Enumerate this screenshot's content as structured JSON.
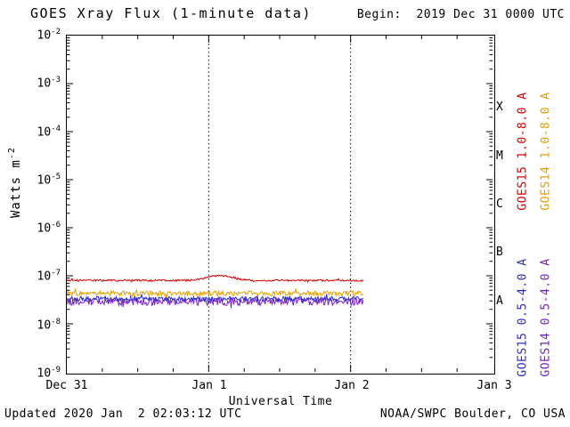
{
  "header": {
    "begin_label": "Begin:  2019 Dec 31 0000 UTC"
  },
  "footer": {
    "updated_label": "Updated 2020 Jan  2 02:03:12 UTC",
    "source_label": "NOAA/SWPC Boulder, CO USA"
  },
  "chart_data": {
    "type": "line",
    "title": "GOES Xray Flux (1-minute data)",
    "xlabel": "Universal Time",
    "ylabel_base": "Watts m",
    "ylabel_exponent": "-2",
    "grid": "vertical-dashed-only",
    "legend_position": "right-rotated",
    "x_axis": {
      "tick_labels": [
        "Dec 31",
        "Jan 1",
        "Jan 2",
        "Jan 3"
      ],
      "tick_days": [
        0,
        1,
        2,
        3
      ],
      "range_days": [
        0,
        3
      ],
      "dashed_gridline_days": [
        1,
        2
      ]
    },
    "y_axis": {
      "scale": "log",
      "exponent_ticks": [
        -2,
        -3,
        -4,
        -5,
        -6,
        -7,
        -8,
        -9
      ],
      "ylim": [
        1e-09,
        0.01
      ],
      "unit": "Watts m^-2"
    },
    "flux_classes": [
      {
        "label": "X",
        "midpoint_exponent": -3.5
      },
      {
        "label": "M",
        "midpoint_exponent": -4.5
      },
      {
        "label": "C",
        "midpoint_exponent": -5.5
      },
      {
        "label": "B",
        "midpoint_exponent": -6.5
      },
      {
        "label": "A",
        "midpoint_exponent": -7.5
      }
    ],
    "series": [
      {
        "name": "GOES15 1.0-8.0 A",
        "color": "#d40000",
        "baseline_wm2": 8e-08,
        "noise_log": 0.018,
        "end_day": 2.09,
        "bump": {
          "center_day": 1.08,
          "amp_log": 0.1,
          "sigma_day": 0.09
        }
      },
      {
        "name": "GOES14 1.0-8.0 A",
        "color": "#e8a000",
        "baseline_wm2": 4.3e-08,
        "noise_log": 0.05,
        "end_day": 2.09
      },
      {
        "name": "GOES15 0.5-4.0 A",
        "color": "#2c2cc8",
        "baseline_wm2": 3.3e-08,
        "noise_log": 0.05,
        "end_day": 2.09
      },
      {
        "name": "GOES14 0.5-4.0 A",
        "color": "#7a1fc2",
        "baseline_wm2": 2.9e-08,
        "noise_log": 0.08,
        "end_day": 2.09
      }
    ],
    "legend": {
      "entries": [
        {
          "label": "GOES15 1.0-8.0 A",
          "color": "#d40000",
          "column": 0,
          "row": 0
        },
        {
          "label": "GOES14 1.0-8.0 A",
          "color": "#e8a000",
          "column": 1,
          "row": 0
        },
        {
          "label": "GOES15 0.5-4.0 A",
          "color": "#2c2cc8",
          "column": 0,
          "row": 1
        },
        {
          "label": "GOES14 0.5-4.0 A",
          "color": "#7a1fc2",
          "column": 1,
          "row": 1
        }
      ]
    }
  }
}
